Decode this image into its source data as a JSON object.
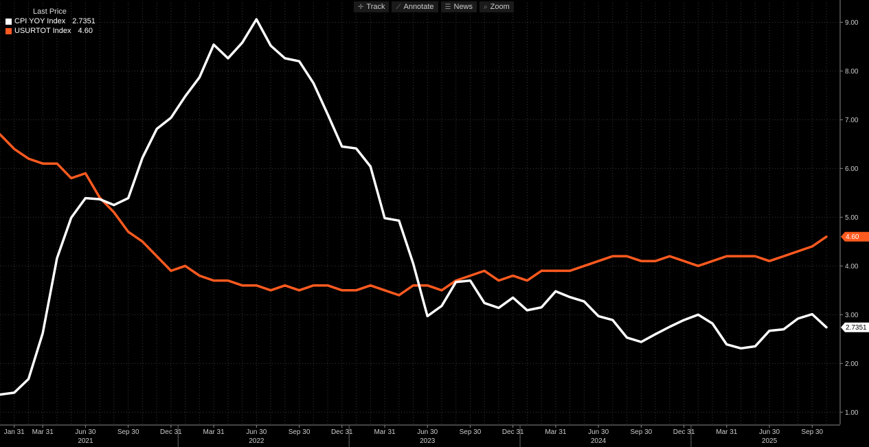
{
  "legend": {
    "title": "Last Price",
    "items": [
      {
        "name": "CPI YOY Index",
        "value": "2.7351",
        "color": "#ffffff"
      },
      {
        "name": "USURTOT Index",
        "value": "4.60",
        "color": "#ff5a1f"
      }
    ]
  },
  "toolbar": [
    {
      "label": "Track",
      "icon": "crosshair-icon",
      "glyph": "✛"
    },
    {
      "label": "Annotate",
      "icon": "pencil-icon",
      "glyph": "⟋"
    },
    {
      "label": "News",
      "icon": "news-icon",
      "glyph": "☰"
    },
    {
      "label": "Zoom",
      "icon": "magnifier-icon",
      "glyph": "⌕"
    }
  ],
  "chart_data": {
    "type": "line",
    "x": [
      "2020-12",
      "2021-01",
      "2021-02",
      "2021-03",
      "2021-04",
      "2021-05",
      "2021-06",
      "2021-07",
      "2021-08",
      "2021-09",
      "2021-10",
      "2021-11",
      "2021-12",
      "2022-01",
      "2022-02",
      "2022-03",
      "2022-04",
      "2022-05",
      "2022-06",
      "2022-07",
      "2022-08",
      "2022-09",
      "2022-10",
      "2022-11",
      "2022-12",
      "2023-01",
      "2023-02",
      "2023-03",
      "2023-04",
      "2023-05",
      "2023-06",
      "2023-07",
      "2023-08",
      "2023-09",
      "2023-10",
      "2023-11",
      "2023-12",
      "2024-01",
      "2024-02",
      "2024-03",
      "2024-04",
      "2024-05",
      "2024-06",
      "2024-07",
      "2024-08",
      "2024-09",
      "2024-10",
      "2024-11",
      "2024-12",
      "2025-01",
      "2025-02",
      "2025-03",
      "2025-04",
      "2025-05",
      "2025-06",
      "2025-07",
      "2025-08",
      "2025-09",
      "2025-10"
    ],
    "series": [
      {
        "name": "CPI YOY Index",
        "color": "#ffffff",
        "last": "2.7351",
        "values": [
          1.36,
          1.4,
          1.68,
          2.62,
          4.16,
          4.99,
          5.39,
          5.37,
          5.25,
          5.39,
          6.22,
          6.81,
          7.04,
          7.48,
          7.87,
          8.54,
          8.26,
          8.58,
          9.06,
          8.52,
          8.26,
          8.2,
          7.75,
          7.11,
          6.45,
          6.41,
          6.04,
          4.98,
          4.93,
          4.05,
          2.97,
          3.18,
          3.67,
          3.7,
          3.24,
          3.14,
          3.35,
          3.09,
          3.15,
          3.48,
          3.36,
          3.27,
          2.97,
          2.89,
          2.53,
          2.44,
          2.6,
          2.75,
          2.89,
          3.0,
          2.82,
          2.39,
          2.31,
          2.35,
          2.67,
          2.7,
          2.92,
          3.01,
          2.74
        ]
      },
      {
        "name": "USURTOT Index",
        "color": "#ff5a1f",
        "last": "4.60",
        "values": [
          6.7,
          6.4,
          6.2,
          6.1,
          6.1,
          5.8,
          5.9,
          5.4,
          5.1,
          4.7,
          4.5,
          4.2,
          3.9,
          4.0,
          3.8,
          3.7,
          3.7,
          3.6,
          3.6,
          3.5,
          3.6,
          3.5,
          3.6,
          3.6,
          3.5,
          3.5,
          3.6,
          3.5,
          3.4,
          3.6,
          3.6,
          3.5,
          3.7,
          3.8,
          3.9,
          3.7,
          3.8,
          3.7,
          3.9,
          3.9,
          3.9,
          4.0,
          4.1,
          4.2,
          4.2,
          4.1,
          4.1,
          4.2,
          4.1,
          4.0,
          4.1,
          4.2,
          4.2,
          4.2,
          4.1,
          4.2,
          4.3,
          4.4,
          4.6
        ]
      }
    ],
    "ylim": [
      0.75,
      9.4
    ],
    "yticks": [
      "1.00",
      "2.00",
      "3.00",
      "4.00",
      "5.00",
      "6.00",
      "7.00",
      "8.00",
      "9.00"
    ],
    "xtick_labels": [
      {
        "x": "2021-01",
        "label": "Jan 31"
      },
      {
        "x": "2021-03",
        "label": "Mar 31"
      },
      {
        "x": "2021-06",
        "label": "Jun 30"
      },
      {
        "x": "2021-09",
        "label": "Sep 30"
      },
      {
        "x": "2021-12",
        "label": "Dec 31"
      },
      {
        "x": "2022-03",
        "label": "Mar 31"
      },
      {
        "x": "2022-06",
        "label": "Jun 30"
      },
      {
        "x": "2022-09",
        "label": "Sep 30"
      },
      {
        "x": "2022-12",
        "label": "Dec 31"
      },
      {
        "x": "2023-03",
        "label": "Mar 31"
      },
      {
        "x": "2023-06",
        "label": "Jun 30"
      },
      {
        "x": "2023-09",
        "label": "Sep 30"
      },
      {
        "x": "2023-12",
        "label": "Dec 31"
      },
      {
        "x": "2024-03",
        "label": "Mar 31"
      },
      {
        "x": "2024-06",
        "label": "Jun 30"
      },
      {
        "x": "2024-09",
        "label": "Sep 30"
      },
      {
        "x": "2024-12",
        "label": "Dec 31"
      },
      {
        "x": "2025-03",
        "label": "Mar 31"
      },
      {
        "x": "2025-06",
        "label": "Jun 30"
      },
      {
        "x": "2025-09",
        "label": "Sep 30"
      }
    ],
    "years": [
      {
        "x": "2021-06",
        "label": "2021"
      },
      {
        "x": "2022-06",
        "label": "2022"
      },
      {
        "x": "2023-06",
        "label": "2023"
      },
      {
        "x": "2024-06",
        "label": "2024"
      },
      {
        "x": "2025-06",
        "label": "2025"
      }
    ],
    "year_boundaries": [
      "2021-12",
      "2022-12",
      "2023-12",
      "2024-12"
    ],
    "grid": true,
    "legend": "top-left"
  }
}
